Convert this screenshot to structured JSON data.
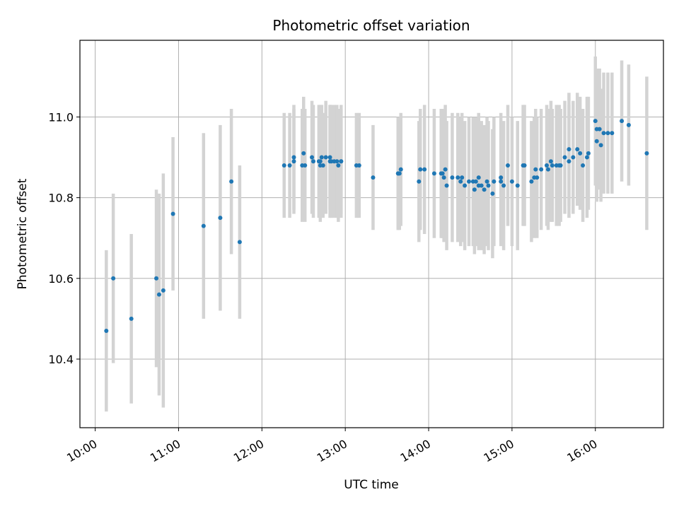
{
  "chart_data": {
    "type": "scatter",
    "title": "Photometric offset variation",
    "xlabel": "UTC time",
    "ylabel": "Photometric offset",
    "x_ticks": [
      "10:00",
      "11:00",
      "12:00",
      "13:00",
      "14:00",
      "15:00",
      "16:00"
    ],
    "y_ticks": [
      "10.4",
      "10.6",
      "10.8",
      "11.0"
    ],
    "xlim": [
      "09:49",
      "16:49"
    ],
    "ylim": [
      10.23,
      11.19
    ],
    "grid": true,
    "marker_color": "#1f77b4",
    "errorbar_color": "#d3d3d3",
    "series": [
      {
        "x": [
          "10:08",
          "10:13",
          "10:26",
          "10:44",
          "10:46",
          "10:49",
          "10:56",
          "11:18",
          "11:30",
          "11:38",
          "11:44",
          "12:16",
          "12:20",
          "12:23",
          "12:30",
          "12:31",
          "12:36",
          "12:37",
          "12:43",
          "12:44",
          "12:49",
          "12:50",
          "12:52",
          "12:54",
          "12:57",
          "13:08",
          "13:20",
          "13:38",
          "13:39",
          "13:40",
          "13:53",
          "13:54",
          "14:04",
          "14:11",
          "14:12",
          "14:13",
          "14:17",
          "14:23",
          "14:26",
          "14:32",
          "14:33",
          "14:34",
          "14:36",
          "14:40",
          "14:42",
          "14:46",
          "14:52",
          "14:54",
          "15:00",
          "15:04",
          "15:09",
          "15:14",
          "15:16",
          "15:18",
          "15:21",
          "15:25",
          "15:26",
          "15:29",
          "15:35",
          "15:41",
          "15:44",
          "15:47",
          "15:49",
          "15:51",
          "15:55",
          "16:04",
          "16:09",
          "16:12",
          "15:28",
          "15:32",
          "15:34",
          "15:54",
          "16:01",
          "16:03",
          "16:06",
          "16:01",
          "15:17",
          "15:08",
          "14:57",
          "14:52",
          "14:47",
          "14:43",
          "14:38",
          "14:36",
          "14:29",
          "14:24",
          "14:21",
          "14:10",
          "14:09",
          "13:57",
          "13:38",
          "13:10",
          "12:57",
          "12:55",
          "12:41",
          "12:42",
          "12:42",
          "12:29",
          "12:23",
          "12:46",
          "12:49",
          "16:37",
          "16:24",
          "16:19",
          "15:41",
          "15:38",
          "16:00"
        ],
        "y": [
          10.47,
          10.6,
          10.5,
          10.6,
          10.56,
          10.57,
          10.76,
          10.73,
          10.75,
          10.84,
          10.69,
          10.88,
          10.88,
          10.9,
          10.91,
          10.88,
          10.9,
          10.89,
          10.9,
          10.88,
          10.9,
          10.89,
          10.89,
          10.89,
          10.89,
          10.88,
          10.85,
          10.86,
          10.86,
          10.87,
          10.84,
          10.87,
          10.86,
          10.85,
          10.87,
          10.83,
          10.85,
          10.84,
          10.83,
          10.84,
          10.82,
          10.84,
          10.85,
          10.82,
          10.84,
          10.81,
          10.84,
          10.83,
          10.84,
          10.83,
          10.88,
          10.84,
          10.85,
          10.85,
          10.87,
          10.88,
          10.87,
          10.88,
          10.88,
          10.89,
          10.9,
          10.92,
          10.91,
          10.88,
          10.91,
          10.93,
          10.96,
          10.96,
          10.89,
          10.88,
          10.88,
          10.9,
          10.97,
          10.97,
          10.96,
          10.94,
          10.87,
          10.88,
          10.88,
          10.85,
          10.84,
          10.83,
          10.83,
          10.83,
          10.84,
          10.85,
          10.85,
          10.86,
          10.86,
          10.87,
          10.86,
          10.88,
          10.89,
          10.88,
          10.89,
          10.89,
          10.88,
          10.88,
          10.89,
          10.9,
          10.89,
          10.91,
          10.98,
          10.99,
          10.92,
          10.9,
          10.99
        ],
        "err": [
          0.2,
          0.21,
          0.21,
          0.22,
          0.25,
          0.29,
          0.19,
          0.23,
          0.23,
          0.18,
          0.19,
          0.13,
          0.13,
          0.13,
          0.14,
          0.14,
          0.14,
          0.14,
          0.13,
          0.13,
          0.13,
          0.14,
          0.14,
          0.14,
          0.13,
          0.13,
          0.13,
          0.14,
          0.14,
          0.14,
          0.15,
          0.15,
          0.16,
          0.16,
          0.16,
          0.16,
          0.16,
          0.16,
          0.16,
          0.16,
          0.16,
          0.16,
          0.16,
          0.16,
          0.16,
          0.16,
          0.16,
          0.16,
          0.16,
          0.16,
          0.15,
          0.15,
          0.15,
          0.15,
          0.15,
          0.15,
          0.15,
          0.14,
          0.14,
          0.14,
          0.14,
          0.14,
          0.14,
          0.14,
          0.14,
          0.14,
          0.15,
          0.15,
          0.15,
          0.15,
          0.15,
          0.15,
          0.15,
          0.15,
          0.15,
          0.15,
          0.15,
          0.15,
          0.15,
          0.16,
          0.16,
          0.16,
          0.16,
          0.16,
          0.16,
          0.16,
          0.16,
          0.16,
          0.16,
          0.16,
          0.14,
          0.13,
          0.14,
          0.14,
          0.14,
          0.14,
          0.14,
          0.14,
          0.13,
          0.14,
          0.14,
          0.19,
          0.15,
          0.15,
          0.14,
          0.14,
          0.16
        ]
      }
    ]
  }
}
